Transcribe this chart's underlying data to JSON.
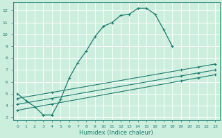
{
  "xlabel": "Humidex (Indice chaleur)",
  "bg_color": "#cceedd",
  "grid_color": "#ffffff",
  "line_color": "#1a7a6e",
  "xlim": [
    -0.5,
    23.5
  ],
  "ylim": [
    2.8,
    12.7
  ],
  "xticks": [
    0,
    1,
    2,
    3,
    4,
    5,
    6,
    7,
    8,
    9,
    10,
    11,
    12,
    13,
    14,
    15,
    16,
    17,
    18,
    19,
    20,
    21,
    22,
    23
  ],
  "yticks": [
    3,
    4,
    5,
    6,
    7,
    8,
    9,
    10,
    11,
    12
  ],
  "main_x": [
    0,
    1,
    2,
    3,
    4,
    5,
    6,
    7,
    8,
    9,
    10,
    11,
    12,
    13,
    14,
    15,
    16,
    17,
    18
  ],
  "main_y": [
    5.0,
    4.4,
    3.9,
    3.2,
    3.2,
    4.5,
    6.3,
    7.6,
    8.6,
    9.8,
    10.7,
    11.0,
    11.6,
    11.7,
    12.2,
    12.2,
    11.7,
    10.4,
    9.0
  ],
  "flat_lines": [
    {
      "x": [
        0,
        23
      ],
      "y": [
        3.6,
        6.6
      ]
    },
    {
      "x": [
        0,
        23
      ],
      "y": [
        4.1,
        7.0
      ]
    },
    {
      "x": [
        0,
        23
      ],
      "y": [
        4.6,
        7.5
      ]
    }
  ],
  "marker_x_on_flat": [
    0,
    4,
    19,
    21,
    23
  ],
  "xlabel_fontsize": 6,
  "tick_fontsize": 4.5
}
